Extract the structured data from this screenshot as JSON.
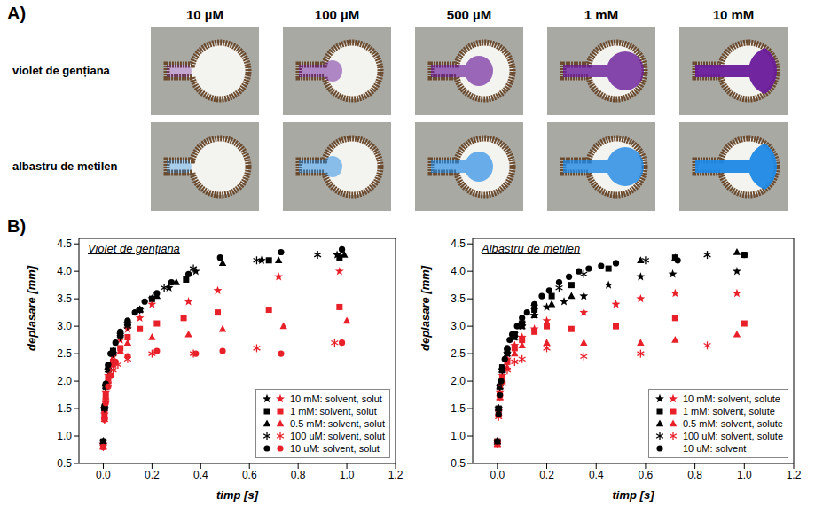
{
  "panel_a": {
    "label": "A)",
    "columns": [
      "10 µM",
      "100 µM",
      "500 µM",
      "1 mM",
      "10 mM"
    ],
    "rows": [
      {
        "label": "violet de gențiana",
        "color": "#6a1b9a"
      },
      {
        "label": "albastru de metilen",
        "color": "#1e88e5"
      }
    ]
  },
  "panel_b": {
    "label": "B)"
  },
  "chart_data": [
    {
      "type": "scatter",
      "title": "Violet de gențiana",
      "xlabel": "timp [s]",
      "ylabel": "deplasare [mm]",
      "xlim": [
        -0.1,
        1.2
      ],
      "xticks": [
        {
          "value": 0,
          "label": "0.0"
        },
        0.2,
        0.4,
        0.6,
        0.8,
        {
          "value": 1,
          "label": "1.0"
        },
        1.2
      ],
      "ylim": [
        0.5,
        4.6
      ],
      "yticks": [
        0.5,
        {
          "value": 1,
          "label": "1.0"
        },
        1.5,
        {
          "value": 2,
          "label": "2.0"
        },
        2.5,
        {
          "value": 3,
          "label": "3.0"
        },
        3.5,
        {
          "value": 4,
          "label": "4.0"
        },
        4.5
      ],
      "legend": "lower right",
      "series": [
        {
          "name": "10 mM: solvent, solut",
          "color": "#000000",
          "marker": "star",
          "x": [
            0,
            0.005,
            0.01,
            0.02,
            0.04,
            0.07,
            0.1,
            0.15,
            0.2,
            0.27,
            0.38,
            0.65,
            0.96
          ],
          "values": [
            0.9,
            1.5,
            1.9,
            2.2,
            2.5,
            2.85,
            3.05,
            3.3,
            3.5,
            3.7,
            4.0,
            4.2,
            4.3
          ]
        },
        {
          "name": "10 mM: solvent, solut",
          "color": "#e8202a",
          "marker": "star",
          "x": [
            0,
            0.005,
            0.01,
            0.02,
            0.04,
            0.07,
            0.1,
            0.15,
            0.2,
            0.35,
            0.47,
            0.72,
            0.97
          ],
          "values": [
            0.85,
            1.4,
            1.8,
            2.1,
            2.45,
            2.75,
            2.95,
            3.15,
            3.4,
            3.45,
            3.65,
            3.9,
            4.0
          ]
        },
        {
          "name": "1 mM: solvent, solut",
          "color": "#000000",
          "marker": "square",
          "x": [
            0,
            0.005,
            0.01,
            0.02,
            0.04,
            0.07,
            0.1,
            0.15,
            0.2,
            0.34,
            0.68,
            0.97
          ],
          "values": [
            0.9,
            1.5,
            1.9,
            2.25,
            2.55,
            2.85,
            3.05,
            3.3,
            3.5,
            3.85,
            4.2,
            4.25
          ]
        },
        {
          "name": "1 mM: solvent, solut",
          "color": "#e8202a",
          "marker": "square",
          "x": [
            0,
            0.005,
            0.01,
            0.02,
            0.04,
            0.07,
            0.1,
            0.15,
            0.22,
            0.33,
            0.47,
            0.68,
            0.97
          ],
          "values": [
            0.85,
            1.4,
            1.75,
            2.05,
            2.35,
            2.6,
            2.8,
            2.95,
            3.05,
            3.15,
            3.25,
            3.3,
            3.35
          ]
        },
        {
          "name": "0.5 mM: solvent, solut",
          "color": "#000000",
          "marker": "triangle",
          "x": [
            0,
            0.005,
            0.01,
            0.02,
            0.04,
            0.07,
            0.1,
            0.15,
            0.22,
            0.3,
            0.49,
            0.72,
            0.99
          ],
          "values": [
            0.9,
            1.55,
            1.95,
            2.25,
            2.55,
            2.85,
            3.05,
            3.3,
            3.55,
            3.8,
            4.15,
            4.2,
            4.3
          ]
        },
        {
          "name": "0.5 mM: solvent, solut",
          "color": "#e8202a",
          "marker": "triangle",
          "x": [
            0,
            0.005,
            0.01,
            0.02,
            0.04,
            0.07,
            0.1,
            0.2,
            0.35,
            0.49,
            0.74,
            1.0
          ],
          "values": [
            0.8,
            1.35,
            1.7,
            2.0,
            2.3,
            2.55,
            2.7,
            2.8,
            2.85,
            2.95,
            3.0,
            3.1
          ]
        },
        {
          "name": "100 uM: solvent, solut",
          "color": "#000000",
          "marker": "asterisk",
          "x": [
            0,
            0.005,
            0.01,
            0.02,
            0.04,
            0.07,
            0.1,
            0.15,
            0.25,
            0.37,
            0.63,
            0.88
          ],
          "values": [
            0.9,
            1.5,
            1.9,
            2.2,
            2.5,
            2.8,
            3.0,
            3.3,
            3.7,
            4.05,
            4.2,
            4.3
          ]
        },
        {
          "name": "100 uM: solvent, solut",
          "color": "#e8202a",
          "marker": "asterisk",
          "x": [
            0,
            0.005,
            0.01,
            0.02,
            0.04,
            0.06,
            0.1,
            0.2,
            0.37,
            0.63,
            0.95
          ],
          "values": [
            0.8,
            1.3,
            1.65,
            1.95,
            2.2,
            2.3,
            2.4,
            2.5,
            2.5,
            2.6,
            2.7
          ]
        },
        {
          "name": "10 uM: solvent, solut",
          "color": "#000000",
          "marker": "circle",
          "x": [
            0,
            0.005,
            0.01,
            0.02,
            0.03,
            0.05,
            0.07,
            0.1,
            0.13,
            0.17,
            0.22,
            0.28,
            0.35,
            0.48,
            0.73,
            0.98
          ],
          "values": [
            0.9,
            1.55,
            1.95,
            2.3,
            2.5,
            2.7,
            2.9,
            3.1,
            3.25,
            3.45,
            3.6,
            3.8,
            3.95,
            4.25,
            4.35,
            4.4
          ]
        },
        {
          "name": "10 uM: solvent, solut",
          "color": "#e8202a",
          "marker": "circle",
          "x": [
            0,
            0.005,
            0.01,
            0.02,
            0.03,
            0.05,
            0.1,
            0.22,
            0.38,
            0.49,
            0.73,
            0.98
          ],
          "values": [
            0.8,
            1.3,
            1.6,
            1.9,
            2.1,
            2.35,
            2.45,
            2.55,
            2.5,
            2.55,
            2.5,
            2.7
          ]
        }
      ]
    },
    {
      "type": "scatter",
      "title": "Albastru de metilen",
      "xlabel": "timp [s]",
      "ylabel": "deplasare [mm]",
      "xlim": [
        -0.1,
        1.2
      ],
      "xticks": [
        {
          "value": 0,
          "label": "0.0"
        },
        0.2,
        0.4,
        0.6,
        0.8,
        {
          "value": 1,
          "label": "1.0"
        },
        1.2
      ],
      "ylim": [
        0.5,
        4.6
      ],
      "yticks": [
        0.5,
        {
          "value": 1,
          "label": "1.0"
        },
        1.5,
        {
          "value": 2,
          "label": "2.0"
        },
        2.5,
        {
          "value": 3,
          "label": "3.0"
        },
        3.5,
        {
          "value": 4,
          "label": "4.0"
        },
        4.5
      ],
      "legend": "lower right",
      "series": [
        {
          "name": "10 mM: solvent, solute",
          "color": "#000000",
          "marker": "star",
          "x": [
            0,
            0.005,
            0.01,
            0.02,
            0.04,
            0.07,
            0.1,
            0.15,
            0.2,
            0.27,
            0.35,
            0.45,
            0.58,
            0.71,
            0.97
          ],
          "values": [
            0.9,
            1.5,
            1.9,
            2.2,
            2.5,
            2.8,
            3.0,
            3.2,
            3.35,
            3.45,
            3.55,
            3.75,
            3.9,
            3.95,
            4.0
          ]
        },
        {
          "name": "10 mM: solvent, solute",
          "color": "#e8202a",
          "marker": "star",
          "x": [
            0,
            0.005,
            0.01,
            0.02,
            0.04,
            0.07,
            0.1,
            0.15,
            0.2,
            0.35,
            0.48,
            0.58,
            0.72,
            0.97
          ],
          "values": [
            0.9,
            1.45,
            1.8,
            2.1,
            2.4,
            2.65,
            2.8,
            2.95,
            3.1,
            3.25,
            3.4,
            3.5,
            3.6,
            3.6
          ]
        },
        {
          "name": "1 mM: solvent, solute",
          "color": "#000000",
          "marker": "square",
          "x": [
            0,
            0.005,
            0.01,
            0.02,
            0.04,
            0.07,
            0.1,
            0.15,
            0.22,
            0.3,
            0.45,
            0.72,
            1.0
          ],
          "values": [
            0.9,
            1.5,
            1.9,
            2.25,
            2.55,
            2.85,
            3.05,
            3.3,
            3.55,
            3.75,
            4.05,
            4.25,
            4.3
          ]
        },
        {
          "name": "1 mM: solvent, solute",
          "color": "#e8202a",
          "marker": "square",
          "x": [
            0,
            0.005,
            0.01,
            0.02,
            0.04,
            0.07,
            0.1,
            0.15,
            0.2,
            0.3,
            0.48,
            0.72,
            1.0
          ],
          "values": [
            0.9,
            1.4,
            1.75,
            2.05,
            2.35,
            2.6,
            2.75,
            2.9,
            3.0,
            2.95,
            3.0,
            3.15,
            3.05
          ]
        },
        {
          "name": "0.5 mM: solvent, solute",
          "color": "#000000",
          "marker": "triangle",
          "x": [
            0,
            0.005,
            0.01,
            0.02,
            0.04,
            0.07,
            0.1,
            0.15,
            0.22,
            0.3,
            0.58,
            0.72,
            0.97
          ],
          "values": [
            0.9,
            1.5,
            1.9,
            2.2,
            2.5,
            2.8,
            3.0,
            3.2,
            3.4,
            3.55,
            4.2,
            4.25,
            4.35
          ]
        },
        {
          "name": "0.5 mM: solvent, solute",
          "color": "#e8202a",
          "marker": "triangle",
          "x": [
            0,
            0.005,
            0.01,
            0.02,
            0.04,
            0.07,
            0.1,
            0.2,
            0.35,
            0.58,
            0.72,
            0.97
          ],
          "values": [
            0.85,
            1.4,
            1.7,
            2.0,
            2.25,
            2.5,
            2.65,
            2.7,
            2.7,
            2.7,
            2.75,
            2.85
          ]
        },
        {
          "name": "100 uM: solvent, solute",
          "color": "#000000",
          "marker": "asterisk",
          "x": [
            0,
            0.005,
            0.01,
            0.02,
            0.04,
            0.07,
            0.1,
            0.15,
            0.25,
            0.35,
            0.6,
            0.85
          ],
          "values": [
            0.9,
            1.5,
            1.9,
            2.2,
            2.55,
            2.85,
            3.05,
            3.35,
            3.7,
            3.95,
            4.2,
            4.3
          ]
        },
        {
          "name": "100 uM: solvent, solute",
          "color": "#e8202a",
          "marker": "asterisk",
          "x": [
            0,
            0.005,
            0.01,
            0.02,
            0.04,
            0.07,
            0.1,
            0.2,
            0.35,
            0.58,
            0.85
          ],
          "values": [
            0.85,
            1.35,
            1.7,
            1.95,
            2.2,
            2.35,
            2.4,
            2.6,
            2.45,
            2.5,
            2.65
          ]
        },
        {
          "name": "10 uM: solvent",
          "color": "#000000",
          "marker": "circle",
          "x": [
            0,
            0.005,
            0.01,
            0.015,
            0.02,
            0.03,
            0.04,
            0.05,
            0.06,
            0.08,
            0.1,
            0.12,
            0.15,
            0.18,
            0.21,
            0.25,
            0.29,
            0.33,
            0.37,
            0.42,
            0.48,
            0.73,
            1.0
          ],
          "values": [
            0.9,
            1.4,
            1.75,
            2.0,
            2.2,
            2.4,
            2.6,
            2.75,
            2.85,
            3.0,
            3.15,
            3.25,
            3.4,
            3.55,
            3.65,
            3.8,
            3.9,
            4.0,
            4.05,
            4.1,
            4.15,
            4.2,
            4.3
          ]
        }
      ]
    }
  ]
}
